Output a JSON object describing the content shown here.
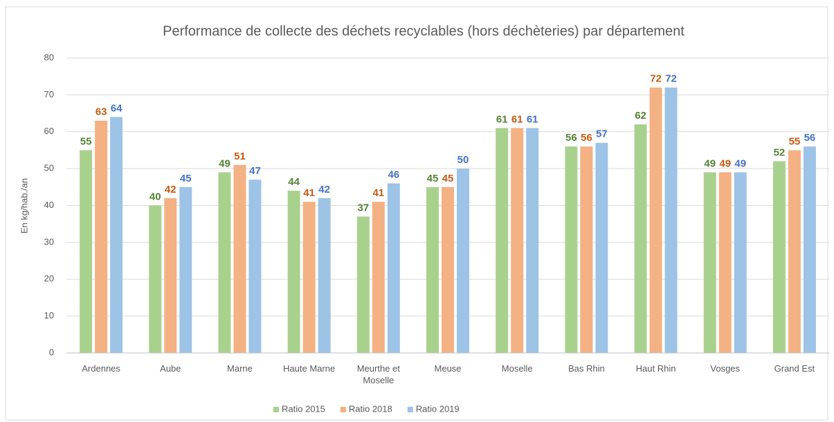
{
  "chart_data": {
    "type": "bar",
    "title": "Performance de collecte des déchets recyclables (hors déchèteries) par département",
    "y_label": "En kg/hab./an",
    "categories": [
      "Ardennes",
      "Aube",
      "Marne",
      "Haute Marne",
      "Meurthe et Moselle",
      "Meuse",
      "Moselle",
      "Bas Rhin",
      "Haut Rhin",
      "Vosges",
      "Grand Est"
    ],
    "series": [
      {
        "name": "Ratio 2015",
        "color": "#a9d18e",
        "label_color": "#548235",
        "values": [
          55,
          40,
          49,
          44,
          37,
          45,
          61,
          56,
          62,
          49,
          52
        ]
      },
      {
        "name": "Ratio 2018",
        "color": "#f4b183",
        "label_color": "#c55a11",
        "values": [
          63,
          42,
          51,
          41,
          41,
          45,
          61,
          56,
          72,
          49,
          55
        ]
      },
      {
        "name": "Ratio 2019",
        "color": "#9dc3e6",
        "label_color": "#4472c4",
        "values": [
          64,
          45,
          47,
          42,
          46,
          50,
          61,
          57,
          72,
          49,
          56
        ]
      }
    ],
    "ylim": [
      0,
      80
    ],
    "yticks": [
      0,
      10,
      20,
      30,
      40,
      50,
      60,
      70,
      80
    ],
    "grid": true,
    "legend": "bottom"
  }
}
